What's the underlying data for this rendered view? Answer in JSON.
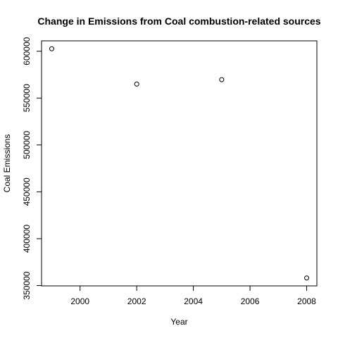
{
  "chart_data": {
    "type": "scatter",
    "title": "Change in Emissions from Coal combustion-related sources",
    "xlabel": "Year",
    "ylabel": "Coal Emissions",
    "x": [
      1999,
      2002,
      2005,
      2008
    ],
    "y": [
      602624,
      564936,
      569654,
      358084
    ],
    "xlim": [
      1998.64,
      2008.36
    ],
    "ylim": [
      349662,
      611046
    ],
    "xticks": [
      2000,
      2002,
      2004,
      2006,
      2008
    ],
    "yticks": [
      350000,
      400000,
      450000,
      500000,
      550000,
      600000
    ],
    "grid": false,
    "legend": "none",
    "marker": "open-circle",
    "color": "#000000"
  }
}
